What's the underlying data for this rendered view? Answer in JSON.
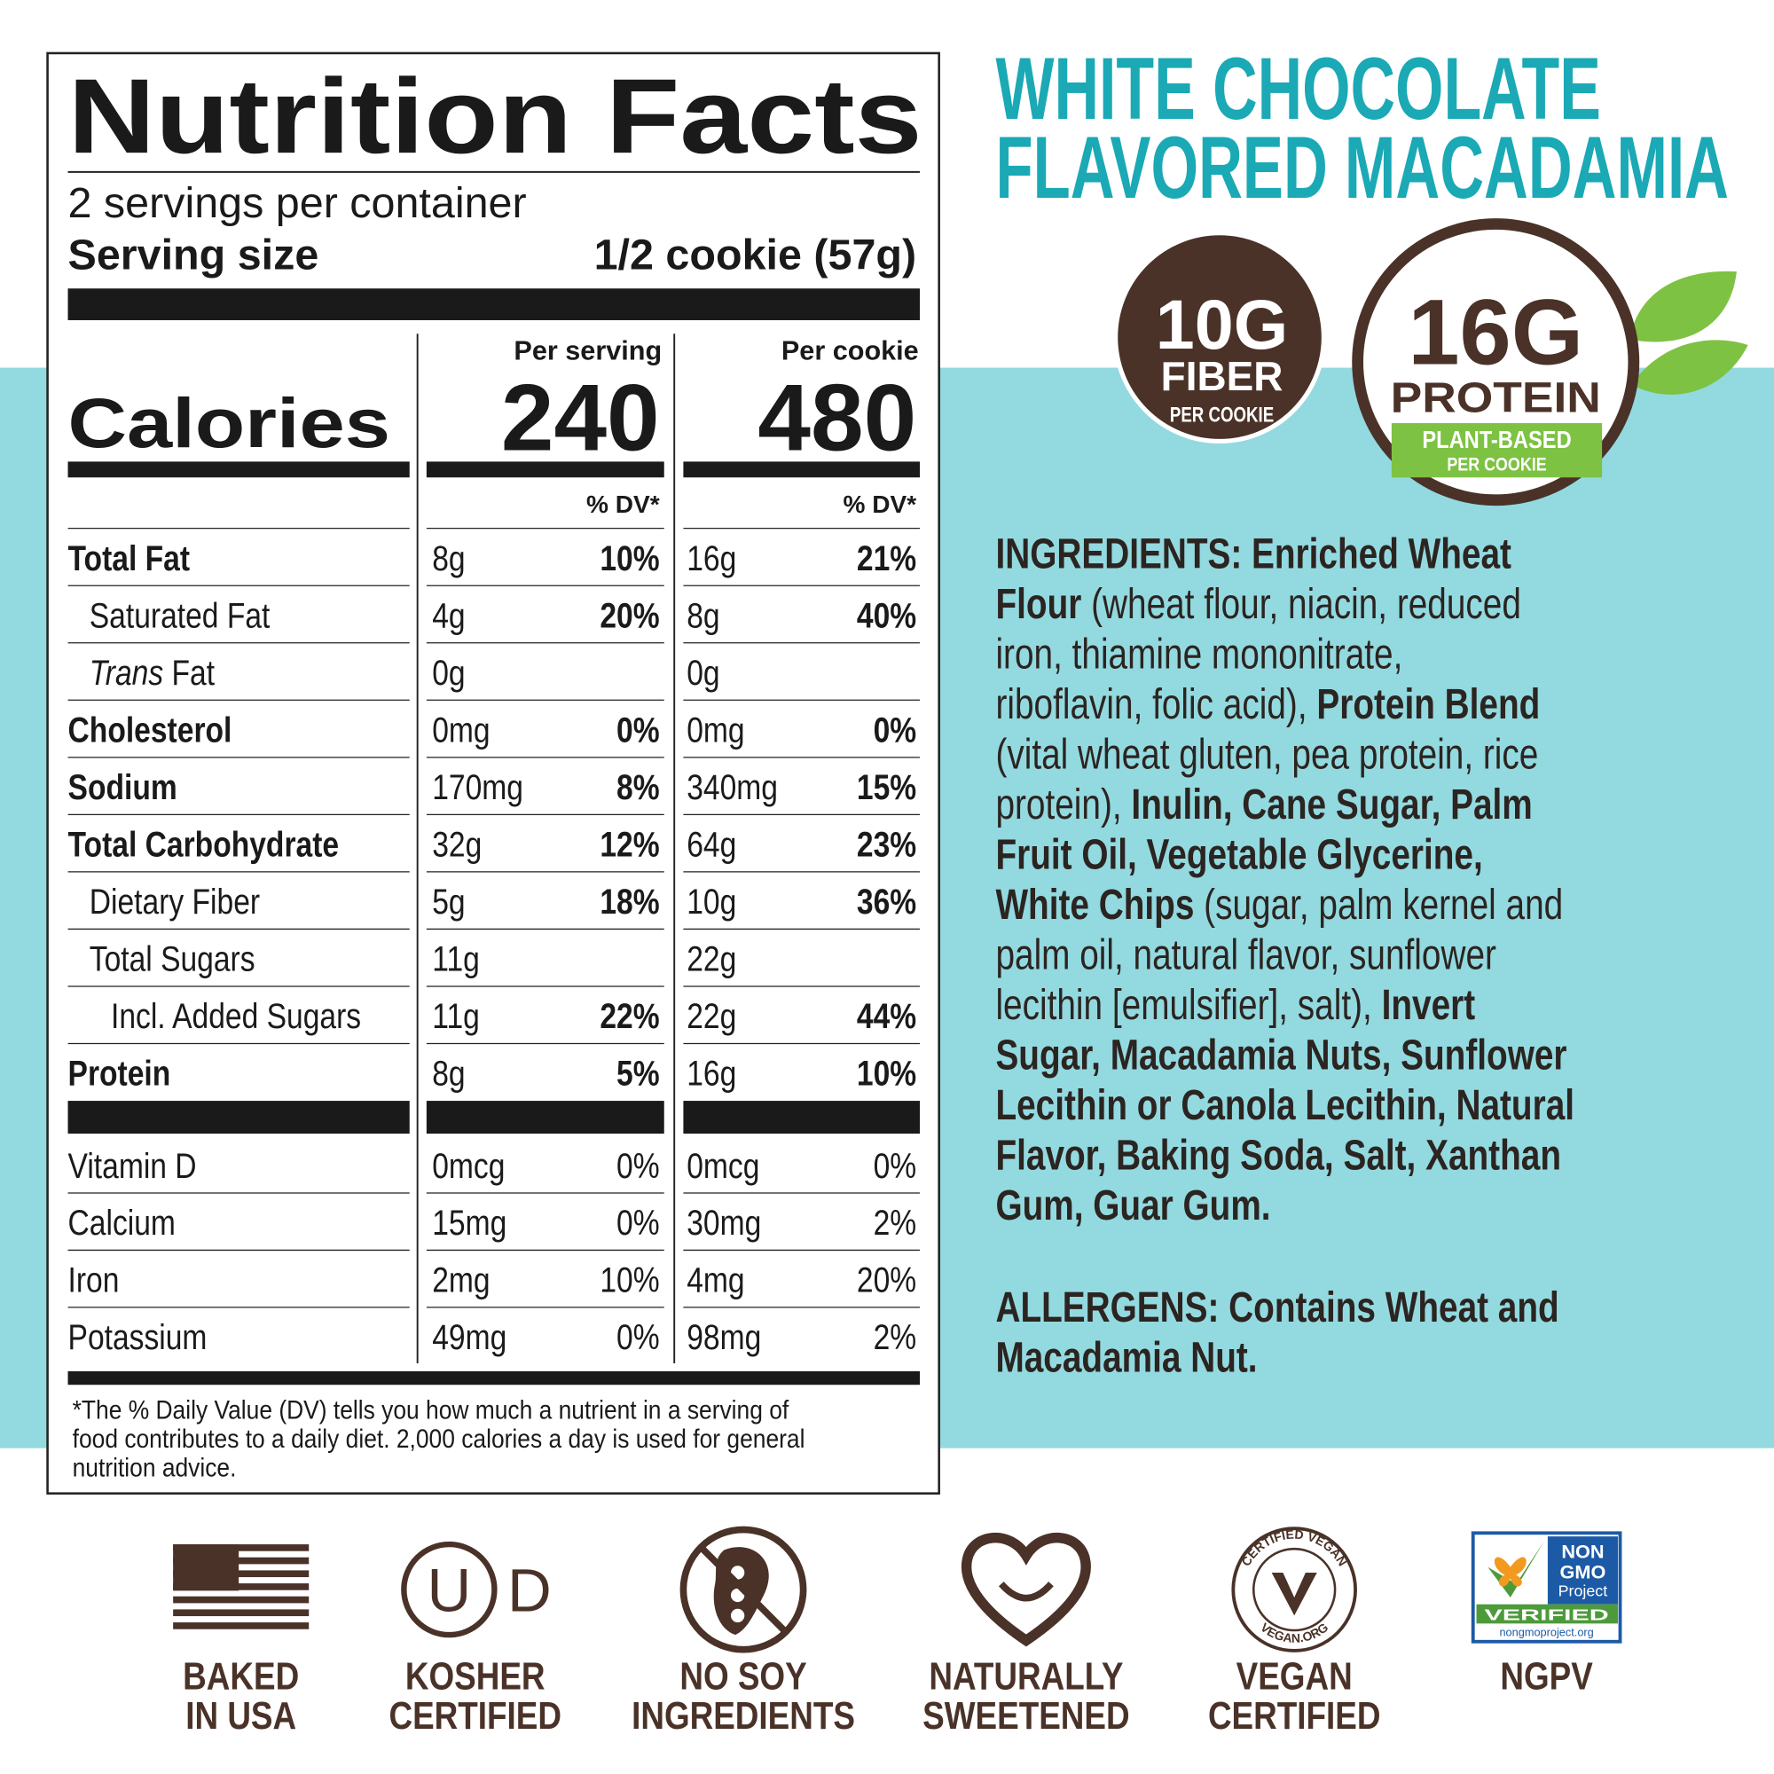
{
  "nutrition_facts": {
    "title": "Nutrition Facts",
    "servings": "2 servings per container",
    "serving_size_label": "Serving size",
    "serving_size": "1/2 cookie (57g)",
    "columns": [
      "Per serving",
      "Per cookie"
    ],
    "calories_label": "Calories",
    "calories": [
      "240",
      "480"
    ],
    "dv_header": "% DV*",
    "rows": [
      {
        "label": "Total Fat",
        "bold": true,
        "indent": 0,
        "values": [
          [
            "8g",
            "10%"
          ],
          [
            "16g",
            "21%"
          ]
        ]
      },
      {
        "label": "Saturated Fat",
        "bold": false,
        "indent": 1,
        "values": [
          [
            "4g",
            "20%"
          ],
          [
            "8g",
            "40%"
          ]
        ]
      },
      {
        "label": "Fat",
        "italic_prefix": "Trans",
        "bold": false,
        "indent": 1,
        "values": [
          [
            "0g",
            null
          ],
          [
            "0g",
            null
          ]
        ]
      },
      {
        "label": "Cholesterol",
        "bold": true,
        "indent": 0,
        "values": [
          [
            "0mg",
            "0%"
          ],
          [
            "0mg",
            "0%"
          ]
        ]
      },
      {
        "label": "Sodium",
        "bold": true,
        "indent": 0,
        "values": [
          [
            "170mg",
            "8%"
          ],
          [
            "340mg",
            "15%"
          ]
        ]
      },
      {
        "label": "Total Carbohydrate",
        "bold": true,
        "indent": 0,
        "values": [
          [
            "32g",
            "12%"
          ],
          [
            "64g",
            "23%"
          ]
        ]
      },
      {
        "label": "Dietary Fiber",
        "bold": false,
        "indent": 1,
        "values": [
          [
            "5g",
            "18%"
          ],
          [
            "10g",
            "36%"
          ]
        ]
      },
      {
        "label": "Total Sugars",
        "bold": false,
        "indent": 1,
        "values": [
          [
            "11g",
            null
          ],
          [
            "22g",
            null
          ]
        ]
      },
      {
        "label": "Incl. Added Sugars",
        "bold": false,
        "indent": 2,
        "values": [
          [
            "11g",
            "22%"
          ],
          [
            "22g",
            "44%"
          ]
        ]
      },
      {
        "label": "Protein",
        "bold": true,
        "indent": 0,
        "values": [
          [
            "8g",
            "5%"
          ],
          [
            "16g",
            "10%"
          ]
        ]
      }
    ],
    "vitamins": [
      {
        "label": "Vitamin D",
        "values": [
          [
            "0mcg",
            "0%"
          ],
          [
            "0mcg",
            "0%"
          ]
        ]
      },
      {
        "label": "Calcium",
        "values": [
          [
            "15mg",
            "0%"
          ],
          [
            "30mg",
            "2%"
          ]
        ]
      },
      {
        "label": "Iron",
        "values": [
          [
            "2mg",
            "10%"
          ],
          [
            "4mg",
            "20%"
          ]
        ]
      },
      {
        "label": "Potassium",
        "values": [
          [
            "49mg",
            "0%"
          ],
          [
            "98mg",
            "2%"
          ]
        ]
      }
    ],
    "footnote": [
      "*The % Daily Value (DV) tells you how much a nutrient in a serving of",
      "food contributes to a daily diet. 2,000 calories a day is used for general",
      "nutrition advice."
    ]
  },
  "product": {
    "title": [
      "WHITE CHOCOLATE",
      "FLAVORED MACADAMIA"
    ],
    "fiber_badge": {
      "amount": "10G",
      "name": "FIBER",
      "note": "PER COOKIE"
    },
    "protein_badge": {
      "amount": "16G",
      "name": "PROTEIN",
      "tag": "PLANT-BASED",
      "note": "PER COOKIE"
    },
    "ingredients": [
      [
        {
          "text": "INGREDIENTS: Enriched Wheat",
          "bold": true
        }
      ],
      [
        {
          "text": "Flour",
          "bold": true
        },
        {
          "text": " (wheat flour, niacin, reduced",
          "bold": false
        }
      ],
      [
        {
          "text": "iron, thiamine mononitrate,",
          "bold": false
        }
      ],
      [
        {
          "text": "riboflavin, folic acid), ",
          "bold": false
        },
        {
          "text": "Protein Blend",
          "bold": true
        }
      ],
      [
        {
          "text": "(vital wheat gluten, pea protein, rice",
          "bold": false
        }
      ],
      [
        {
          "text": "protein), ",
          "bold": false
        },
        {
          "text": "Inulin, Cane Sugar, Palm",
          "bold": true
        }
      ],
      [
        {
          "text": "Fruit Oil, Vegetable Glycerine,",
          "bold": true
        }
      ],
      [
        {
          "text": "White Chips",
          "bold": true
        },
        {
          "text": " (sugar, palm kernel and",
          "bold": false
        }
      ],
      [
        {
          "text": "palm oil, natural flavor, sunflower",
          "bold": false
        }
      ],
      [
        {
          "text": "lecithin [emulsifier], salt), ",
          "bold": false
        },
        {
          "text": "Invert",
          "bold": true
        }
      ],
      [
        {
          "text": "Sugar, Macadamia Nuts, Sunflower",
          "bold": true
        }
      ],
      [
        {
          "text": "Lecithin or Canola Lecithin, Natural",
          "bold": true
        }
      ],
      [
        {
          "text": "Flavor, Baking Soda, Salt, Xanthan",
          "bold": true
        }
      ],
      [
        {
          "text": "Gum, Guar Gum.",
          "bold": true
        }
      ]
    ],
    "allergens": [
      [
        {
          "text": "ALLERGENS: Contains Wheat and",
          "bold": true
        }
      ],
      [
        {
          "text": "Macadamia Nut.",
          "bold": true
        }
      ]
    ]
  },
  "certifications": [
    {
      "label": [
        "BAKED",
        "IN USA"
      ]
    },
    {
      "label": [
        "KOSHER",
        "CERTIFIED"
      ],
      "mark": [
        "U",
        "D"
      ]
    },
    {
      "label": [
        "NO SOY",
        "INGREDIENTS"
      ]
    },
    {
      "label": [
        "NATURALLY",
        "SWEETENED"
      ]
    },
    {
      "label": [
        "VEGAN",
        "CERTIFIED"
      ],
      "ring": [
        "CERTIFIED VEGAN",
        "VEGAN.ORG"
      ]
    },
    {
      "label": [
        "NGPV"
      ],
      "logo": [
        "NON",
        "GMO",
        "Project",
        "VERIFIED",
        "nongmoproject.org"
      ]
    }
  ]
}
